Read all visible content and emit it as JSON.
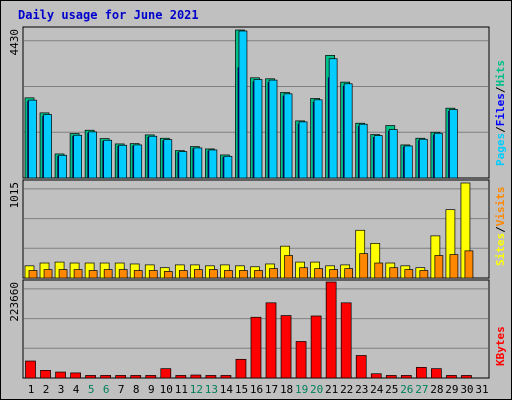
{
  "title": "Daily usage for June 2021",
  "colors": {
    "pages": "#00ccff",
    "files": "#0000ff",
    "hits": "#00c08a",
    "sites": "#ffff00",
    "visits": "#ff8800",
    "kbytes": "#ff0000",
    "weekend_label": "#00805a",
    "weekday_label": "#000000",
    "panel_bg": "#c0c0c0",
    "grid": "#808080"
  },
  "chart_data": [
    {
      "type": "bar",
      "panel": "hits-files-pages",
      "ylabel_max": "4430",
      "ylim": [
        0,
        4430
      ],
      "right_label": [
        "Pages",
        "/",
        "Files",
        "/",
        "Hits"
      ],
      "categories": [
        "1",
        "2",
        "3",
        "4",
        "5",
        "6",
        "7",
        "8",
        "9",
        "10",
        "11",
        "12",
        "13",
        "14",
        "15",
        "16",
        "17",
        "18",
        "19",
        "20",
        "21",
        "22",
        "23",
        "24",
        "25",
        "26",
        "27",
        "28",
        "29",
        "30",
        "31"
      ],
      "series": [
        {
          "name": "Hits",
          "values": [
            2400,
            1950,
            720,
            1330,
            1430,
            1180,
            1020,
            1030,
            1290,
            1190,
            820,
            940,
            870,
            690,
            4430,
            3000,
            2970,
            2560,
            1710,
            2380,
            3670,
            2870,
            1640,
            1300,
            1570,
            990,
            1190,
            1370,
            2090,
            0,
            0
          ]
        },
        {
          "name": "Files",
          "values": [
            2300,
            1850,
            650,
            1250,
            1350,
            1100,
            950,
            960,
            1220,
            1120,
            760,
            880,
            810,
            620,
            3300,
            2880,
            2860,
            2450,
            1620,
            2270,
            3000,
            2750,
            1550,
            1220,
            1410,
            930,
            1120,
            1290,
            2000,
            0,
            0
          ]
        },
        {
          "name": "Pages",
          "values": [
            2330,
            1900,
            680,
            1280,
            1380,
            1130,
            980,
            990,
            1250,
            1150,
            790,
            900,
            840,
            650,
            4400,
            2950,
            2930,
            2520,
            1680,
            2340,
            3570,
            2820,
            1610,
            1270,
            1450,
            960,
            1160,
            1340,
            2050,
            0,
            0
          ]
        }
      ]
    },
    {
      "type": "bar",
      "panel": "visits-sites",
      "ylabel_max": "1015",
      "ylim": [
        0,
        1015
      ],
      "right_label": [
        "Sites",
        "/",
        "Visits"
      ],
      "categories": [
        "1",
        "2",
        "3",
        "4",
        "5",
        "6",
        "7",
        "8",
        "9",
        "10",
        "11",
        "12",
        "13",
        "14",
        "15",
        "16",
        "17",
        "18",
        "19",
        "20",
        "21",
        "22",
        "23",
        "24",
        "25",
        "26",
        "27",
        "28",
        "29",
        "30",
        "31"
      ],
      "series": [
        {
          "name": "Sites",
          "values": [
            130,
            160,
            170,
            160,
            160,
            160,
            160,
            150,
            140,
            110,
            140,
            140,
            130,
            140,
            130,
            120,
            150,
            340,
            170,
            170,
            130,
            140,
            510,
            370,
            160,
            130,
            110,
            450,
            730,
            1015,
            0
          ]
        },
        {
          "name": "Visits",
          "values": [
            80,
            90,
            90,
            90,
            80,
            90,
            90,
            80,
            80,
            70,
            80,
            90,
            90,
            80,
            80,
            80,
            100,
            240,
            110,
            100,
            90,
            100,
            260,
            160,
            110,
            90,
            80,
            240,
            250,
            290,
            0
          ]
        }
      ]
    },
    {
      "type": "bar",
      "panel": "kbytes",
      "ylabel_max": "223660",
      "ylim": [
        0,
        223660
      ],
      "right_label": [
        "KBytes"
      ],
      "categories": [
        "1",
        "2",
        "3",
        "4",
        "5",
        "6",
        "7",
        "8",
        "9",
        "10",
        "11",
        "12",
        "13",
        "14",
        "15",
        "16",
        "17",
        "18",
        "19",
        "20",
        "21",
        "22",
        "23",
        "24",
        "25",
        "26",
        "27",
        "28",
        "29",
        "30",
        "31"
      ],
      "series": [
        {
          "name": "KBytes",
          "values": [
            40000,
            18000,
            14000,
            12000,
            6000,
            6000,
            6000,
            6000,
            6000,
            22000,
            6000,
            7000,
            6000,
            6000,
            44000,
            143000,
            177000,
            147000,
            86000,
            146000,
            226000,
            177000,
            53000,
            10000,
            6000,
            6000,
            25000,
            22000,
            6000,
            6000,
            0
          ]
        }
      ]
    }
  ],
  "x_labels": {
    "days": [
      "1",
      "2",
      "3",
      "4",
      "5",
      "6",
      "7",
      "8",
      "9",
      "10",
      "11",
      "12",
      "13",
      "14",
      "15",
      "16",
      "17",
      "18",
      "19",
      "20",
      "21",
      "22",
      "23",
      "24",
      "25",
      "26",
      "27",
      "28",
      "29",
      "30",
      "31"
    ],
    "weekend_days": [
      "5",
      "6",
      "12",
      "13",
      "19",
      "20",
      "26",
      "27"
    ]
  }
}
